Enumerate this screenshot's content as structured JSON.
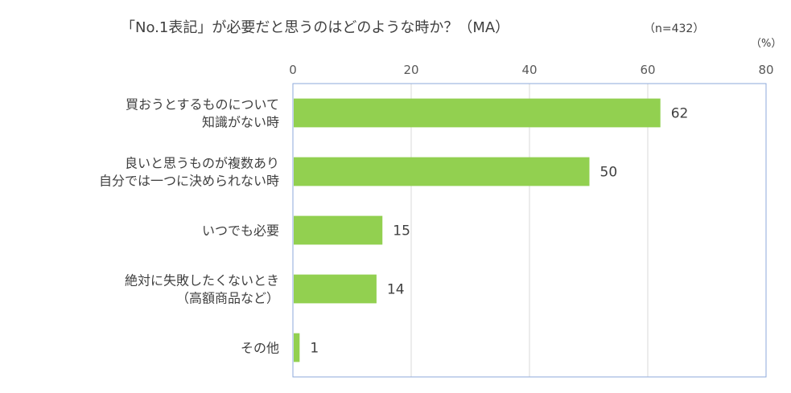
{
  "chart_data": {
    "type": "bar",
    "orientation": "horizontal",
    "title": "「No.1表記」が必要だと思うのはどのような時か？（MA）",
    "sample_size": "（n=432）",
    "unit": "（%）",
    "categories": [
      [
        "買おうとするものについて",
        "知識がない時"
      ],
      [
        "良いと思うものが複数あり",
        "自分では一つに決められない時"
      ],
      [
        "いつでも必要"
      ],
      [
        "絶対に失敗したくないとき",
        "（高額商品など）"
      ],
      [
        "その他"
      ]
    ],
    "values": [
      62,
      50,
      15,
      14,
      1
    ],
    "xlim": [
      0,
      80
    ],
    "xticks": [
      "0",
      "20",
      "40",
      "60",
      "80"
    ],
    "grid": true,
    "bar_color": "#92d050",
    "grid_color": "#d9d9d9",
    "border_color": "#8eaadb"
  }
}
